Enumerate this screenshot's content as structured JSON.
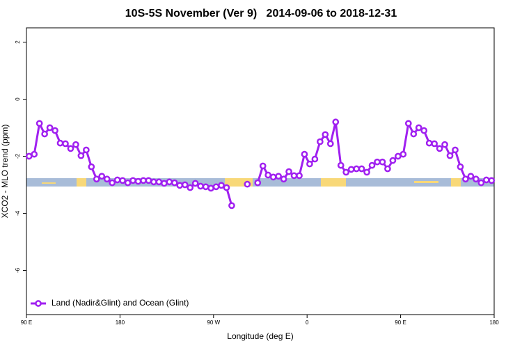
{
  "chart_data": {
    "type": "line",
    "title": "10S-5S November (Ver 9)   2014-09-06 to 2018-12-31",
    "xlabel": "Longitude (deg E)",
    "ylabel": "XCO2 - MLO trend (ppm)",
    "xlim": [
      90,
      540
    ],
    "ylim": [
      -7.55,
      2.5
    ],
    "xticks": [
      {
        "value": 90,
        "label": "90 E"
      },
      180,
      {
        "value": 270,
        "label": "90 W"
      },
      {
        "value": 360,
        "label": "0"
      },
      {
        "value": 450,
        "label": "90 E"
      },
      {
        "value": 540,
        "label": "180"
      }
    ],
    "yticks": [
      -6,
      -4,
      -2,
      0,
      2
    ],
    "legend": "bottom-left",
    "x": [
      92.5,
      97.5,
      102.5,
      107.5,
      112.5,
      117.5,
      122.5,
      127.5,
      132.5,
      137.5,
      142.5,
      147.5,
      152.5,
      157.5,
      162.5,
      167.5,
      172.5,
      177.5,
      182.5,
      187.5,
      192.5,
      197.5,
      202.5,
      207.5,
      212.5,
      217.5,
      222.5,
      227.5,
      232.5,
      237.5,
      242.5,
      247.5,
      252.5,
      257.5,
      262.5,
      267.5,
      272.5,
      277.5,
      282.5,
      287.5,
      292.5,
      297.5,
      302.5,
      307.5,
      312.5,
      317.5,
      322.5,
      327.5,
      332.5,
      337.5,
      342.5,
      347.5,
      352.5,
      357.5,
      362.5,
      367.5,
      372.5,
      377.5,
      382.5,
      387.5,
      392.5,
      397.5,
      402.5,
      407.5,
      412.5,
      417.5,
      422.5,
      427.5,
      432.5,
      437.5,
      442.5,
      447.5,
      452.5,
      457.5,
      462.5,
      467.5,
      472.5,
      477.5,
      482.5,
      487.5,
      492.5,
      497.5,
      502.5,
      507.5,
      512.5,
      517.5,
      522.5,
      527.5,
      532.5,
      537.5
    ],
    "series": [
      {
        "name": "Land (Nadir&Glint) and Ocean (Glint)",
        "color": "#a020f0",
        "values": [
          -2.0,
          -1.93,
          -0.85,
          -1.22,
          -1.0,
          -1.1,
          -1.54,
          -1.56,
          -1.73,
          -1.59,
          -1.98,
          -1.78,
          -2.37,
          -2.8,
          -2.7,
          -2.8,
          -2.93,
          -2.83,
          -2.85,
          -2.93,
          -2.85,
          -2.88,
          -2.85,
          -2.85,
          -2.9,
          -2.9,
          -2.95,
          -2.9,
          -2.93,
          -3.02,
          -3.0,
          -3.1,
          -2.95,
          -3.05,
          -3.07,
          -3.12,
          -3.07,
          -3.02,
          -3.1,
          -3.73,
          null,
          null,
          -2.98,
          null,
          -2.93,
          -2.34,
          -2.66,
          -2.73,
          -2.7,
          -2.8,
          -2.54,
          -2.68,
          -2.68,
          -1.93,
          -2.27,
          -2.1,
          -1.49,
          -1.24,
          -1.56,
          -0.8,
          -2.32,
          -2.56,
          -2.46,
          -2.44,
          -2.44,
          -2.56,
          -2.32,
          -2.2,
          -2.2,
          -2.44,
          -2.15,
          -2.0,
          -1.93,
          -0.85,
          -1.22,
          -1.0,
          -1.1,
          -1.54,
          -1.56,
          -1.73,
          -1.59,
          -1.98,
          -1.78,
          -2.37,
          -2.8,
          -2.7,
          -2.8,
          -2.93,
          -2.83,
          -2.85
        ]
      }
    ]
  }
}
